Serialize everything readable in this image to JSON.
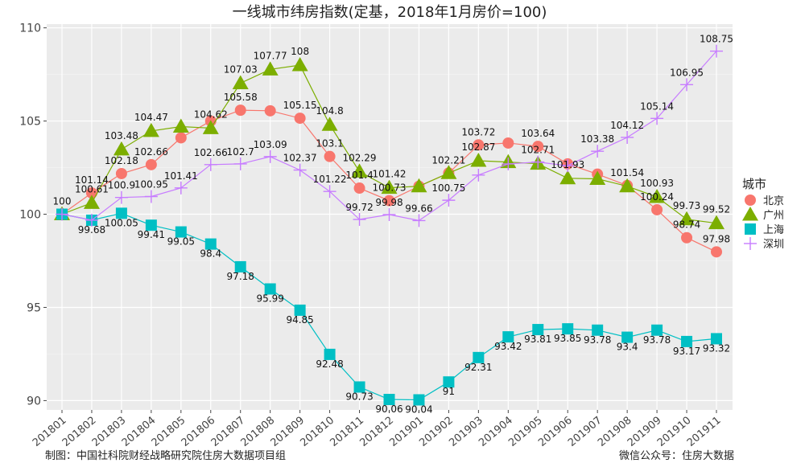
{
  "chart_data": {
    "type": "line",
    "title": "一线城市纬房指数(定基，2018年1月房价=100)",
    "xlabel": "",
    "ylabel": "",
    "ylim": [
      89.5,
      110.2
    ],
    "yticks": [
      90,
      95,
      100,
      105,
      110
    ],
    "grid": true,
    "legend_position": "right",
    "legend_title": "城市",
    "categories": [
      "201801",
      "201802",
      "201803",
      "201804",
      "201805",
      "201806",
      "201807",
      "201808",
      "201809",
      "201810",
      "201811",
      "201812",
      "201901",
      "201902",
      "201903",
      "201904",
      "201905",
      "201906",
      "201907",
      "201908",
      "201909",
      "201910",
      "201911"
    ],
    "series": [
      {
        "name": "北京",
        "color": "#F8766D",
        "marker": "circle",
        "values": [
          100,
          101.14,
          102.18,
          102.66,
          104.1,
          105.0,
          105.58,
          105.55,
          105.15,
          103.1,
          101.4,
          100.73,
          101.5,
          102.21,
          103.72,
          103.82,
          103.64,
          102.7,
          102.15,
          101.54,
          100.24,
          98.74,
          97.98
        ],
        "labels": [
          "100",
          "101.14",
          "102.18",
          "102.66",
          "",
          "",
          "105.58",
          "",
          "105.15",
          "103.1",
          "101.4",
          "100.73",
          "",
          "102.21",
          "103.72",
          "",
          "103.64",
          "",
          "",
          "101.54",
          "100.24",
          "98.74",
          "97.98"
        ]
      },
      {
        "name": "广州",
        "color": "#7CAE00",
        "marker": "triangle",
        "values": [
          100,
          100.61,
          103.48,
          104.47,
          104.7,
          104.62,
          107.03,
          107.77,
          108,
          104.8,
          102.29,
          101.42,
          101.5,
          102.21,
          102.87,
          102.8,
          102.71,
          101.93,
          101.9,
          101.5,
          100.93,
          99.73,
          99.52
        ],
        "labels": [
          "",
          "100.61",
          "103.48",
          "104.47",
          "",
          "104.62",
          "107.03",
          "107.77",
          "108",
          "104.8",
          "102.29",
          "101.42",
          "",
          "",
          "102.87",
          "",
          "102.71",
          "101.93",
          "",
          "",
          "100.93",
          "99.73",
          "99.52"
        ]
      },
      {
        "name": "上海",
        "color": "#00BFC4",
        "marker": "square",
        "values": [
          100,
          99.68,
          100.05,
          99.41,
          99.05,
          98.4,
          97.18,
          95.99,
          94.85,
          92.48,
          90.73,
          90.06,
          90.04,
          91,
          92.31,
          93.42,
          93.81,
          93.85,
          93.78,
          93.4,
          93.78,
          93.17,
          93.32
        ],
        "labels": [
          "",
          "99.68",
          "100.05",
          "99.41",
          "99.05",
          "98.4",
          "97.18",
          "95.99",
          "94.85",
          "92.48",
          "90.73",
          "90.06",
          "90.04",
          "91",
          "92.31",
          "93.42",
          "93.81",
          "93.85",
          "93.78",
          "93.4",
          "93.78",
          "93.17",
          "93.32"
        ]
      },
      {
        "name": "深圳",
        "color": "#C77CFF",
        "marker": "plus",
        "values": [
          100,
          99.68,
          100.9,
          100.95,
          101.41,
          102.66,
          102.7,
          103.09,
          102.37,
          101.22,
          99.72,
          99.98,
          99.66,
          100.75,
          102.1,
          102.7,
          102.8,
          102.6,
          103.38,
          104.12,
          105.14,
          106.95,
          108.75
        ],
        "labels": [
          "",
          "",
          "100.9",
          "100.95",
          "101.41",
          "102.66",
          "102.7",
          "103.09",
          "102.37",
          "101.22",
          "99.72",
          "99.98",
          "99.66",
          "100.75",
          "",
          "",
          "",
          "",
          "103.38",
          "104.12",
          "105.14",
          "106.95",
          "108.75"
        ]
      }
    ]
  },
  "footer": {
    "left": "制图：中国社科院财经战略研究院住房大数据项目组",
    "right": "微信公众号：住房大数据"
  }
}
